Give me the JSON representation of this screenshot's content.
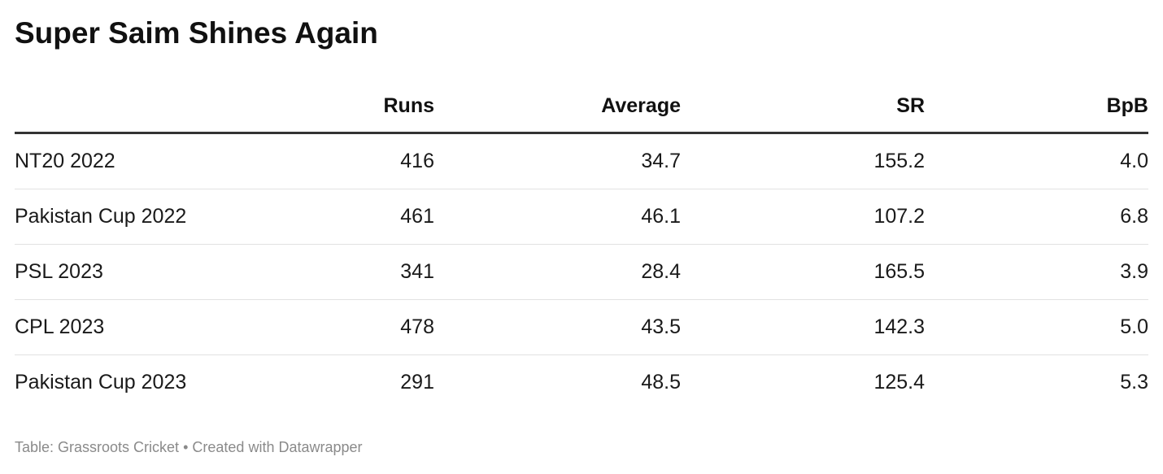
{
  "title": "Super Saim Shines Again",
  "chart_data": {
    "type": "table",
    "columns": [
      "",
      "Runs",
      "Average",
      "SR",
      "BpB"
    ],
    "rows": [
      [
        "NT20 2022",
        "416",
        "34.7",
        "155.2",
        "4.0"
      ],
      [
        "Pakistan Cup 2022",
        "461",
        "46.1",
        "107.2",
        "6.8"
      ],
      [
        "PSL 2023",
        "341",
        "28.4",
        "165.5",
        "3.9"
      ],
      [
        "CPL 2023",
        "478",
        "43.5",
        "142.3",
        "5.0"
      ],
      [
        "Pakistan Cup 2023",
        "291",
        "48.5",
        "125.4",
        "5.3"
      ]
    ]
  },
  "footer": {
    "source": "Table: Grassroots Cricket",
    "separator": "•",
    "credit": "Created with Datawrapper"
  }
}
